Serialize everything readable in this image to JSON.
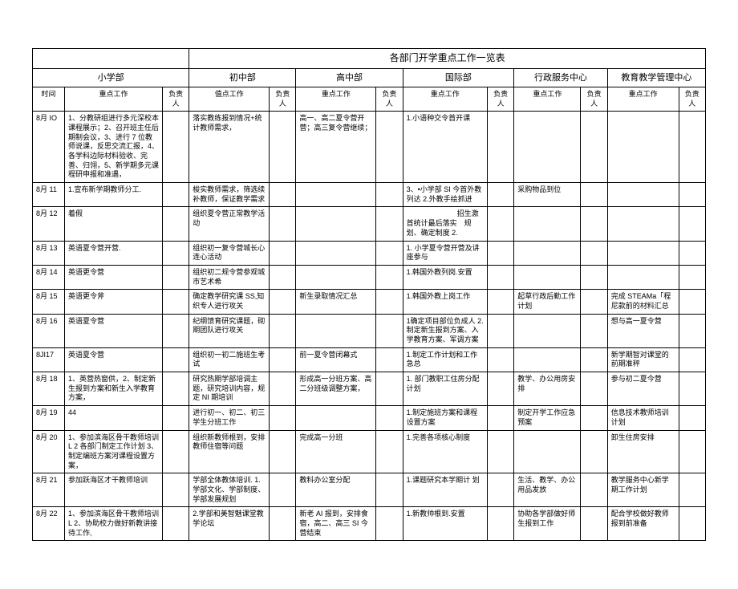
{
  "title": "各部门开学重点工作一览表",
  "departments": {
    "elementary": "小学部",
    "junior": "初中部",
    "senior": "高中部",
    "international": "国际部",
    "admin": "行政服务中心",
    "education": "教育教学管理中心"
  },
  "headers": {
    "time": "时间",
    "work": "重点工作",
    "work_alt": "值点工作",
    "person": "负责人"
  },
  "rows": [
    {
      "time": "8月 IO",
      "elementary": "1、分教研组进行多元深校本课程展示；2、召开班主任后期制会议，3、进行 7 位教师说课，反思交流汇报，4、各学科边际材料验收、完善、归翎，5、新学期多元课程研申报和准遇，",
      "junior": "落实教练报到情况+统计教师需求，",
      "senior": "高一、高二夏令营开营；高三复令营继续；",
      "international": "1.小语种交令首开课",
      "admin": "",
      "education": ""
    },
    {
      "time": "8月 11",
      "elementary": "1.宣布新学期教师分工.",
      "junior": "梭实教师需求，筛选续补教师，保证教学需求",
      "senior": "",
      "international": "3、•小学部 SI 今首外教列达 2.外教手绘抓进",
      "admin": "采购物品到位",
      "education": ""
    },
    {
      "time": "8月 12",
      "elementary": "着假",
      "junior": "组织夏令营正常教学活动",
      "senior": "",
      "international": "　　　　　　　招生激首统计最后落实　规划、确定制度 2.",
      "admin": "",
      "education": ""
    },
    {
      "time": "8月 13",
      "elementary": "英语夏令营开营.",
      "junior": "组织初一复令营城长心连心活动",
      "senior": "",
      "international": "1. 小学夏令营开营及讲座参与",
      "admin": "",
      "education": ""
    },
    {
      "time": "8月 14",
      "elementary": "英语更令营",
      "junior": "组织初二规令营参观城市艺术希",
      "senior": "",
      "international": "1.韩国外教列岗.安置",
      "admin": "",
      "education": ""
    },
    {
      "time": "8月 15",
      "elementary": "英语更令斧",
      "junior": "确定教学研究课 SS,知织专人进行攻关",
      "senior": "新生录取情况汇总",
      "international": "1.韩国外教上岗工作",
      "admin": "起草行政后勤工作计划",
      "education": "完成 STEAMa「程尼款前的材料汇总"
    },
    {
      "time": "8月 16",
      "elementary": "英语夏令营",
      "junior": "纪纲馈育研究课题，砌期团队进行攻关",
      "senior": "",
      "international": "1确定项目部位负成人 2.制定新生报到方案、入学教育方案、军调方案",
      "admin": "",
      "education": "想与高一夏令营"
    },
    {
      "time": "8JI17",
      "elementary": "英语夏令营",
      "junior": "组织初一初二施班生考试",
      "senior": "前一夏令营闭幕式",
      "international": "1.制定工作计划和工作急总",
      "admin": "",
      "education": "新学期智对课堂的前期准秤"
    },
    {
      "time": "8月 18",
      "elementary": "1、英营热窗供，2、制定新生报到方案和新生入学教育方案，",
      "junior": "研究热期学部培调主题，研究培训内容，规定 NI 期培训",
      "senior": "形成高一分班方案、高二分班级调整方案，",
      "international": "1. 部门教职工住房分配计划",
      "admin": "教学、办公用房安排",
      "education": "参与初二夏今营"
    },
    {
      "time": "8月 19",
      "elementary": "44",
      "junior": "进行初一、初二、初三学生分班工作",
      "senior": "",
      "international": "1.制定施班方案和课程设置方案",
      "admin": "制定开学工作应急预案",
      "education": "信息技术教师培训计划"
    },
    {
      "time": "8月 20",
      "elementary": "1、参加滨海区骨干教师培训 L 2 各部门制定工作计划 3、制定编班方案河课程设置方案，",
      "junior": "组织新教师根到，安排教师住宿等问题",
      "senior": "完成高一分班",
      "international": "1.完善各项核心制度",
      "admin": "",
      "education": "卸生住房安排"
    },
    {
      "time": "8月 21",
      "elementary": "参加跃海区才干教师培训",
      "junior": "学部全体教体培训. 1.学部文化、学部制度、学部发展规划",
      "senior": "教料办公室分配",
      "international": "1.课题研究本学期计 划",
      "admin": "生活、教学、办公用品发放",
      "education": "教学服务中心新学期工作计划"
    },
    {
      "time": "8月 22",
      "elementary": "1、参加滨海区骨干教师培训 L 2、协助校力做好新教讲接待工作,",
      "junior": "2.学部和美智魅课堂教学论坛",
      "senior": "新老 AI 报到，安排食宿，高二、高三 SI 今营结束",
      "international": "1.新教帅根到.安置",
      "admin": "协助各学部做好师生报到工作",
      "education": "配合学校做好教师报到前准备"
    }
  ],
  "colors": {
    "border": "#000000",
    "background": "#ffffff",
    "text": "#000000"
  },
  "font_sizes": {
    "title": 12,
    "dept_header": 11,
    "content": 9
  }
}
